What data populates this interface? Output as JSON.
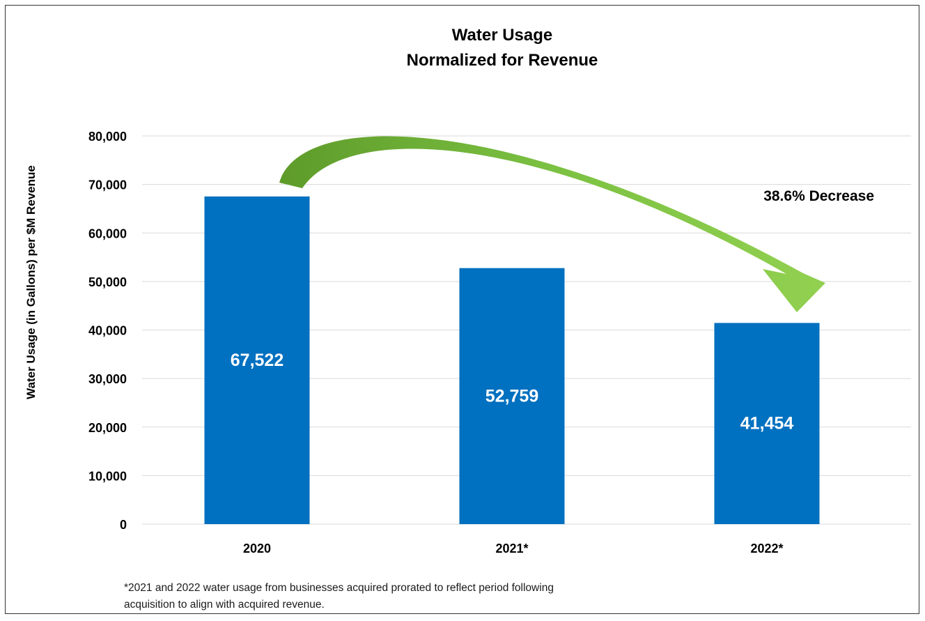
{
  "chart_data": {
    "type": "bar",
    "title_line1": "Water Usage",
    "title_line2": "Normalized for Revenue",
    "xlabel": "",
    "ylabel": "Water Usage (in Gallons) per $M Revenue",
    "categories": [
      "2020",
      "2021*",
      "2022*"
    ],
    "values": [
      67522,
      52759,
      41454
    ],
    "value_labels": [
      "67,522",
      "52,759",
      "41,454"
    ],
    "ylim": [
      0,
      80000
    ],
    "yticks": [
      0,
      10000,
      20000,
      30000,
      40000,
      50000,
      60000,
      70000,
      80000
    ],
    "ytick_labels": [
      "0",
      "10,000",
      "20,000",
      "30,000",
      "40,000",
      "50,000",
      "60,000",
      "70,000",
      "80,000"
    ],
    "grid": true,
    "bar_color": "#0070C0",
    "annotation": "38.6% Decrease",
    "arrow_color": "#7BC142"
  },
  "footnote_line1": "*2021 and 2022 water usage from businesses acquired prorated to reflect period following",
  "footnote_line2": "acquisition to align with acquired revenue."
}
